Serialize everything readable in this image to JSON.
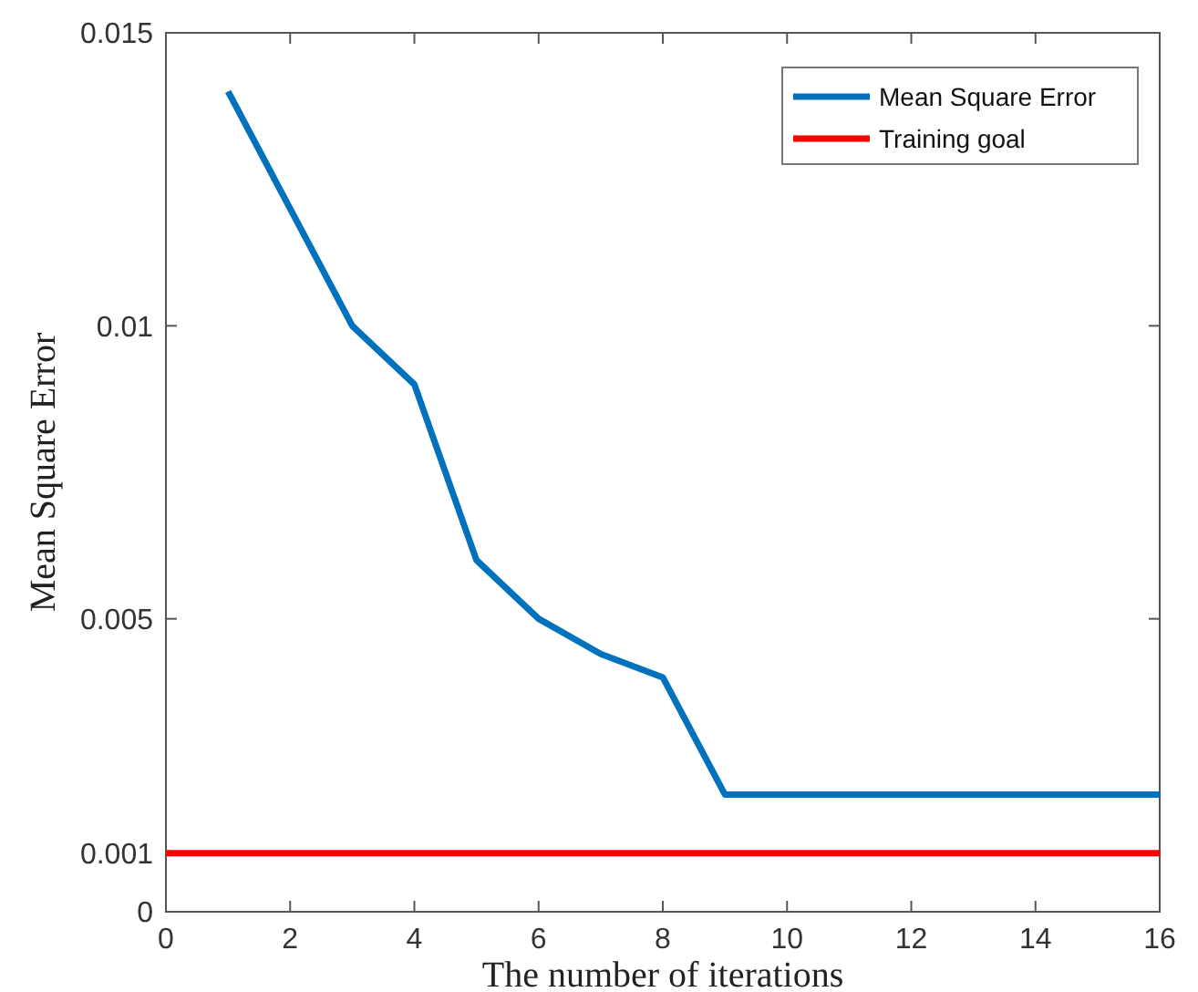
{
  "chart_data": {
    "type": "line",
    "xlabel": "The number of iterations",
    "ylabel": "Mean Square Error",
    "xlim": [
      0,
      16
    ],
    "xticks": [
      0,
      2,
      4,
      6,
      8,
      10,
      12,
      14,
      16
    ],
    "ylim": [
      0,
      0.015
    ],
    "yticks": [
      0,
      0.001,
      0.005,
      0.01,
      0.015
    ],
    "series": [
      {
        "name": "Mean Square Error",
        "color": "#0072bd",
        "x": [
          1,
          2,
          3,
          4,
          5,
          6,
          7,
          8,
          9,
          10,
          11,
          12,
          13,
          14,
          15,
          16
        ],
        "values": [
          0.014,
          0.012,
          0.01,
          0.009,
          0.006,
          0.005,
          0.0044,
          0.004,
          0.002,
          0.002,
          0.002,
          0.002,
          0.002,
          0.002,
          0.002,
          0.002
        ]
      },
      {
        "name": "Training goal",
        "color": "#ff0000",
        "x": [
          0,
          16
        ],
        "values": [
          0.001,
          0.001
        ]
      }
    ],
    "legend": "top right",
    "grid": false,
    "marker": "none",
    "line_style": "solid"
  }
}
